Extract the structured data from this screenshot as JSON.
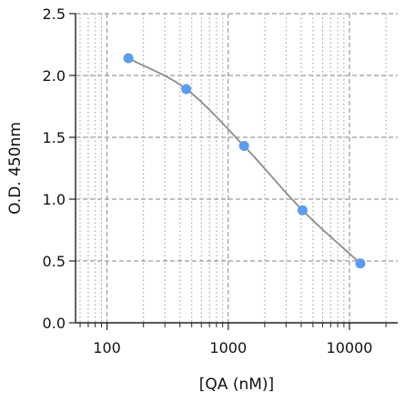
{
  "chart_data": {
    "type": "scatter",
    "title": "",
    "xlabel": "[QA (nM)]",
    "ylabel": "O.D. 450nm",
    "x_scale": "log",
    "xlim": [
      55,
      25000
    ],
    "ylim": [
      0,
      2.5
    ],
    "x_ticks": [
      100,
      1000,
      10000
    ],
    "x_tick_labels": [
      "100",
      "1000",
      "10000"
    ],
    "y_ticks": [
      0,
      0.5,
      1.0,
      1.5,
      2.0,
      2.5
    ],
    "y_tick_labels": [
      "0.0",
      "0.5",
      "1.0",
      "1.5",
      "2.0",
      "2.5"
    ],
    "grid": true,
    "points": [
      {
        "x": 150,
        "y": 2.14
      },
      {
        "x": 450,
        "y": 1.89
      },
      {
        "x": 1350,
        "y": 1.43
      },
      {
        "x": 4100,
        "y": 0.91
      },
      {
        "x": 12300,
        "y": 0.48
      }
    ],
    "fit_curve": true,
    "colors": {
      "points": "#5b9bf0",
      "curve": "#8c8c8c",
      "grid": "#9a9a9a",
      "axis": "#222222"
    }
  }
}
